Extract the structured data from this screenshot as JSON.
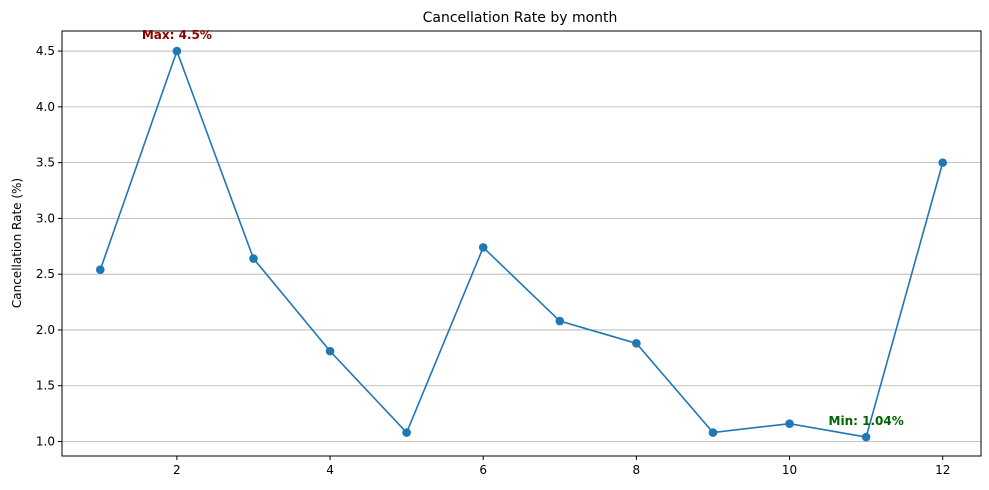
{
  "chart_data": {
    "type": "line",
    "title": "Cancellation Rate by month",
    "xlabel": "",
    "ylabel": "Cancellation Rate (%)",
    "x": [
      1,
      2,
      3,
      4,
      5,
      6,
      7,
      8,
      9,
      10,
      11,
      12
    ],
    "series": [
      {
        "name": "Cancellation Rate",
        "values": [
          2.54,
          4.5,
          2.64,
          1.81,
          1.08,
          2.74,
          2.08,
          1.88,
          1.08,
          1.16,
          1.04,
          3.5
        ],
        "color": "#1f77b4",
        "marker": "circle"
      }
    ],
    "xlim": [
      0.5,
      12.5
    ],
    "ylim": [
      0.87,
      4.68
    ],
    "xticks": [
      2,
      4,
      6,
      8,
      10,
      12
    ],
    "yticks": [
      1.0,
      1.5,
      2.0,
      2.5,
      3.0,
      3.5,
      4.0,
      4.5
    ],
    "grid": "y-axis",
    "annotations": [
      {
        "text": "Max: 4.5%",
        "x": 2,
        "y": 4.5,
        "color": "#8b0000"
      },
      {
        "text": "Min: 1.04%",
        "x": 11,
        "y": 1.04,
        "color": "#006400"
      }
    ]
  }
}
